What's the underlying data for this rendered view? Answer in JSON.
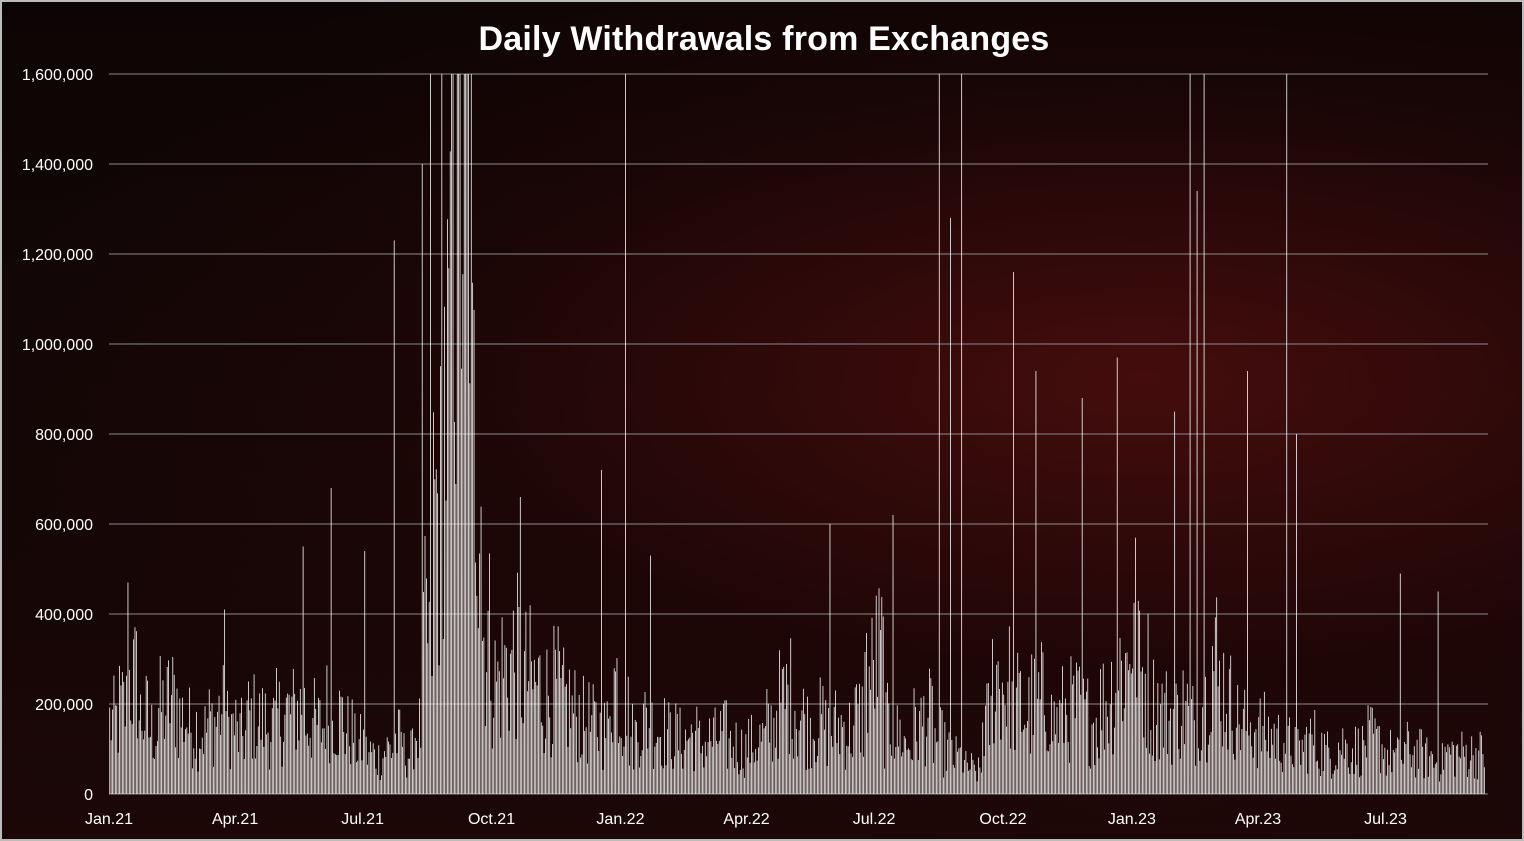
{
  "chart_data": {
    "type": "bar",
    "title": "Daily Withdrawals from Exchanges",
    "xlabel": "",
    "ylabel": "",
    "ylim": [
      0,
      1600000
    ],
    "y_ticks": [
      "0",
      "200,000",
      "400,000",
      "600,000",
      "800,000",
      "1,000,000",
      "1,200,000",
      "1,400,000",
      "1,600,000"
    ],
    "x_ticks": [
      "Jan.21",
      "Apr.21",
      "Jul.21",
      "Oct.21",
      "Jan.22",
      "Apr.22",
      "Jul.22",
      "Oct.22",
      "Jan.23",
      "Apr.23",
      "Jul.23"
    ],
    "grid": true,
    "bar_color": "#ffffff",
    "weekly_average_values": [
      160000,
      190000,
      250000,
      170000,
      140000,
      190000,
      210000,
      170000,
      150000,
      140000,
      160000,
      180000,
      150000,
      130000,
      170000,
      160000,
      150000,
      170000,
      180000,
      190000,
      160000,
      150000,
      190000,
      170000,
      140000,
      110000,
      90000,
      80000,
      100000,
      120000,
      90000,
      140000,
      350000,
      620000,
      900000,
      1350000,
      1500000,
      800000,
      350000,
      250000,
      280000,
      300000,
      260000,
      240000,
      220000,
      230000,
      200000,
      180000,
      160000,
      150000,
      140000,
      250000,
      180000,
      130000,
      160000,
      150000,
      140000,
      130000,
      120000,
      130000,
      110000,
      120000,
      130000,
      110000,
      100000,
      110000,
      120000,
      150000,
      200000,
      220000,
      170000,
      150000,
      160000,
      140000,
      150000,
      140000,
      170000,
      260000,
      300000,
      150000,
      130000,
      110000,
      150000,
      170000,
      120000,
      100000,
      80000,
      60000,
      50000,
      160000,
      260000,
      240000,
      200000,
      180000,
      200000,
      210000,
      160000,
      180000,
      190000,
      170000,
      160000,
      200000,
      230000,
      280000,
      380000,
      260000,
      200000,
      180000,
      170000,
      190000,
      160000,
      200000,
      300000,
      240000,
      200000,
      160000,
      150000,
      140000,
      130000,
      120000,
      110000,
      100000,
      120000,
      100000,
      90000,
      110000,
      100000,
      100000,
      120000,
      110000,
      90000,
      80000,
      100000,
      90000,
      80000,
      70000,
      90000
    ],
    "spikes": [
      {
        "date": "2021-01-14",
        "value": 470000
      },
      {
        "date": "2021-03-24",
        "value": 410000
      },
      {
        "date": "2021-05-19",
        "value": 550000
      },
      {
        "date": "2021-06-08",
        "value": 680000
      },
      {
        "date": "2021-07-02",
        "value": 540000
      },
      {
        "date": "2021-07-23",
        "value": 1230000
      },
      {
        "date": "2021-08-12",
        "value": 1400000
      },
      {
        "date": "2021-08-18",
        "value": 1600000
      },
      {
        "date": "2021-08-26",
        "value": 1600000
      },
      {
        "date": "2021-09-02",
        "value": 1600000
      },
      {
        "date": "2021-09-06",
        "value": 1600000
      },
      {
        "date": "2021-10-21",
        "value": 660000
      },
      {
        "date": "2021-12-18",
        "value": 720000
      },
      {
        "date": "2022-01-04",
        "value": 1600000
      },
      {
        "date": "2022-01-22",
        "value": 530000
      },
      {
        "date": "2022-05-30",
        "value": 600000
      },
      {
        "date": "2022-07-14",
        "value": 620000
      },
      {
        "date": "2022-08-16",
        "value": 1600000
      },
      {
        "date": "2022-08-24",
        "value": 1280000
      },
      {
        "date": "2022-09-01",
        "value": 1600000
      },
      {
        "date": "2022-10-08",
        "value": 1160000
      },
      {
        "date": "2022-10-24",
        "value": 940000
      },
      {
        "date": "2022-11-26",
        "value": 880000
      },
      {
        "date": "2022-12-21",
        "value": 970000
      },
      {
        "date": "2023-01-31",
        "value": 850000
      },
      {
        "date": "2023-02-11",
        "value": 1600000
      },
      {
        "date": "2023-02-16",
        "value": 1340000
      },
      {
        "date": "2023-02-21",
        "value": 1600000
      },
      {
        "date": "2023-03-24",
        "value": 940000
      },
      {
        "date": "2023-04-21",
        "value": 1600000
      },
      {
        "date": "2023-04-28",
        "value": 800000
      },
      {
        "date": "2023-07-11",
        "value": 490000
      },
      {
        "date": "2023-08-07",
        "value": 450000
      }
    ]
  }
}
